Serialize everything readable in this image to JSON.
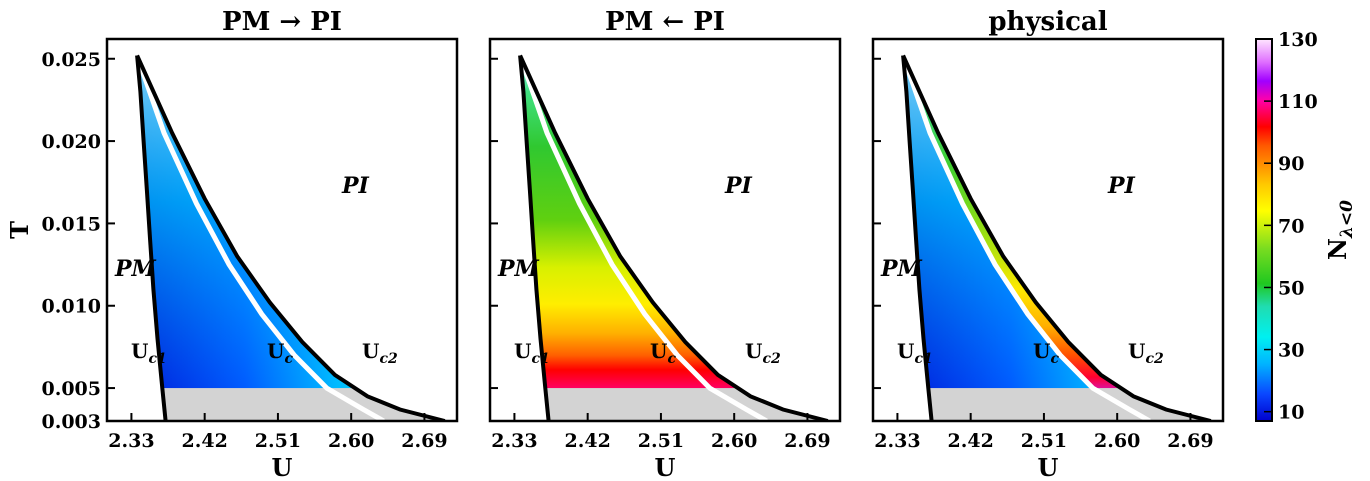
{
  "chart_data": {
    "type": "heatmap",
    "panels": [
      {
        "title": "PM → PI",
        "region_labels": {
          "pm": "PM",
          "pi": "PI",
          "uc1": "U",
          "uc1_sub": "c1",
          "uc": "U",
          "uc_sub": "c",
          "uc2": "U",
          "uc2_sub": "c2"
        },
        "field": "forward"
      },
      {
        "title": "PM ← PI",
        "region_labels": {
          "pm": "PM",
          "pi": "PI",
          "uc1": "U",
          "uc1_sub": "c1",
          "uc": "U",
          "uc_sub": "c",
          "uc2": "U",
          "uc2_sub": "c2"
        },
        "field": "backward"
      },
      {
        "title": "physical",
        "region_labels": {
          "pm": "PM",
          "pi": "PI",
          "uc1": "U",
          "uc1_sub": "c1",
          "uc": "U",
          "uc_sub": "c",
          "uc2": "U",
          "uc2_sub": "c2"
        },
        "field": "physical"
      }
    ],
    "xlabel": "U",
    "ylabel": "T",
    "xticks": [
      2.33,
      2.42,
      2.51,
      2.6,
      2.69
    ],
    "xtick_labels": [
      "2.33",
      "2.42",
      "2.51",
      "2.60",
      "2.69"
    ],
    "yticks": [
      0.003,
      0.005,
      0.01,
      0.015,
      0.02,
      0.025
    ],
    "ytick_labels": [
      "0.003",
      "0.005",
      "0.010",
      "0.015",
      "0.020",
      "0.025"
    ],
    "xlim": [
      2.3,
      2.73
    ],
    "ylim": [
      0.003,
      0.0262
    ],
    "critical_point": {
      "U": 2.337,
      "T": 0.0252
    },
    "uc1_line": [
      [
        2.372,
        0.003
      ],
      [
        2.368,
        0.005
      ],
      [
        2.362,
        0.008
      ],
      [
        2.357,
        0.011
      ],
      [
        2.353,
        0.014
      ],
      [
        2.349,
        0.017
      ],
      [
        2.345,
        0.02
      ],
      [
        2.341,
        0.023
      ],
      [
        2.337,
        0.0252
      ]
    ],
    "uc2_line": [
      [
        2.337,
        0.0252
      ],
      [
        2.38,
        0.0205
      ],
      [
        2.42,
        0.0165
      ],
      [
        2.46,
        0.013
      ],
      [
        2.5,
        0.0102
      ],
      [
        2.54,
        0.0078
      ],
      [
        2.58,
        0.0058
      ],
      [
        2.62,
        0.0045
      ],
      [
        2.66,
        0.0037
      ],
      [
        2.715,
        0.003
      ]
    ],
    "uc_line": [
      [
        2.337,
        0.0252
      ],
      [
        2.37,
        0.0205
      ],
      [
        2.41,
        0.0162
      ],
      [
        2.45,
        0.0125
      ],
      [
        2.49,
        0.0095
      ],
      [
        2.53,
        0.007
      ],
      [
        2.57,
        0.005
      ],
      [
        2.615,
        0.0037
      ],
      [
        2.64,
        0.003
      ]
    ],
    "masked_below_T": 0.005,
    "colorbar": {
      "label_main": "N",
      "label_sub": "λ<0",
      "min": 7,
      "max": 130,
      "ticks": [
        10,
        30,
        50,
        70,
        90,
        110,
        130
      ],
      "tick_labels": [
        "10",
        "30",
        "50",
        "70",
        "90",
        "110",
        "130"
      ]
    },
    "colors": {
      "uc_line": "#ffffff",
      "boundary": "#000000",
      "masked": "#d3d3d3"
    }
  }
}
